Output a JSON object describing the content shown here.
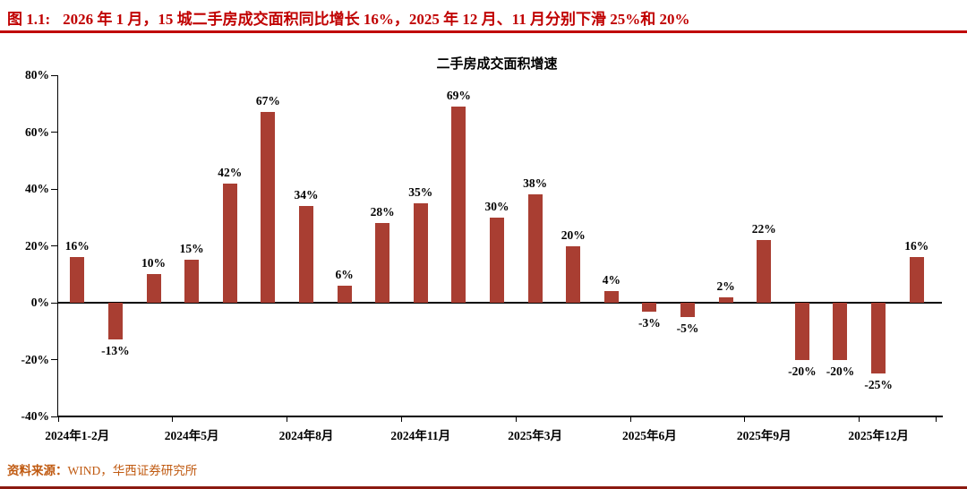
{
  "header": {
    "figure_label": "图 1.1:",
    "title": "2026 年 1 月，15 城二手房成交面积同比增长 16%，2025 年 12 月、11 月分别下滑 25%和 20%"
  },
  "chart_data": {
    "type": "bar",
    "title": "二手房成交面积增速",
    "values": [
      16,
      -13,
      10,
      15,
      42,
      67,
      34,
      6,
      28,
      35,
      69,
      30,
      38,
      20,
      4,
      -3,
      -5,
      2,
      22,
      -20,
      -20,
      -25,
      16
    ],
    "data_labels": [
      "16%",
      "-13%",
      "10%",
      "15%",
      "42%",
      "67%",
      "34%",
      "6%",
      "28%",
      "35%",
      "69%",
      "30%",
      "38%",
      "20%",
      "4%",
      "-3%",
      "-5%",
      "2%",
      "22%",
      "-20%",
      "-20%",
      "-25%",
      "16%"
    ],
    "x_axis": {
      "tick_labels": [
        "2024年1-2月",
        "2024年5月",
        "2024年8月",
        "2024年11月",
        "2025年3月",
        "2025年6月",
        "2025年9月",
        "2025年12月"
      ],
      "tick_bar_indices": [
        0,
        3,
        6,
        9,
        12,
        15,
        18,
        21
      ]
    },
    "y_axis": {
      "tick_labels": [
        "80%",
        "60%",
        "40%",
        "20%",
        "0%",
        "-20%",
        "-40%"
      ],
      "tick_values": [
        80,
        60,
        40,
        20,
        0,
        -20,
        -40
      ],
      "min": -40,
      "max": 80
    },
    "bar_color": "#A93E32",
    "grid": false,
    "legend": false
  },
  "footer": {
    "source_label": "资料来源：",
    "source_text": "WIND，华西证券研究所"
  },
  "colors": {
    "caption_red": "#C00000",
    "bar_red": "#A93E32",
    "source_orange": "#C05A11",
    "bottom_rule_red": "#8B1A10"
  }
}
